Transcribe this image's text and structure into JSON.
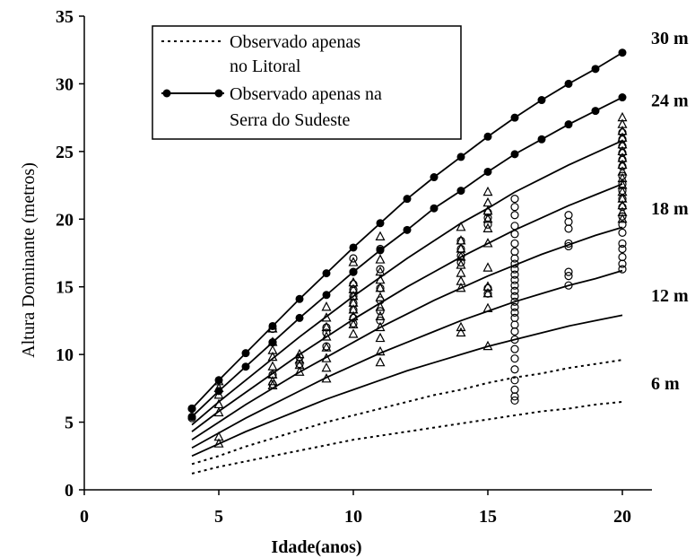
{
  "chart_data": {
    "type": "line",
    "xlabel": "Idade(anos)",
    "ylabel": "Altura Dominante (metros)",
    "xlim": [
      0,
      22
    ],
    "ylim": [
      0,
      35
    ],
    "xticks": [
      0,
      5,
      10,
      15,
      20
    ],
    "yticks": [
      0,
      5,
      10,
      15,
      20,
      25,
      30,
      35
    ],
    "legend": {
      "position": "top-left",
      "entries": [
        {
          "label_lines": [
            "Observado apenas",
            "no Litoral"
          ],
          "style": "dotted"
        },
        {
          "label_lines": [
            "Observado apenas na",
            "Serra do Sudeste"
          ],
          "style": "solid-circle-markers"
        }
      ]
    },
    "site_index_labels": [
      {
        "text": "30 m",
        "y": 33.4
      },
      {
        "text": "24 m",
        "y": 28.8
      },
      {
        "text": "18 m",
        "y": 20.8
      },
      {
        "text": "12 m",
        "y": 14.4
      },
      {
        "text": "6 m",
        "y": 7.9
      }
    ],
    "curves_x": [
      4,
      5,
      6,
      7,
      8,
      9,
      10,
      11,
      12,
      13,
      14,
      15,
      16,
      17,
      18,
      19,
      20
    ],
    "series": [
      {
        "style": "solid-markers",
        "values": [
          6.0,
          8.1,
          10.1,
          12.1,
          14.1,
          16.0,
          17.9,
          19.7,
          21.5,
          23.1,
          24.6,
          26.1,
          27.5,
          28.8,
          30.0,
          31.1,
          32.3
        ]
      },
      {
        "style": "solid-markers",
        "values": [
          5.4,
          7.3,
          9.1,
          10.9,
          12.7,
          14.4,
          16.1,
          17.7,
          19.2,
          20.8,
          22.1,
          23.5,
          24.8,
          25.9,
          27.0,
          28.0,
          29.0
        ]
      },
      {
        "style": "solid",
        "values": [
          4.8,
          6.5,
          8.1,
          9.7,
          11.3,
          12.8,
          14.3,
          15.7,
          17.1,
          18.4,
          19.7,
          20.8,
          22.0,
          23.0,
          24.0,
          24.9,
          25.8
        ]
      },
      {
        "style": "solid",
        "values": [
          4.3,
          5.8,
          7.2,
          8.6,
          10.0,
          11.3,
          12.6,
          13.8,
          15.0,
          16.1,
          17.2,
          18.2,
          19.2,
          20.1,
          21.0,
          21.8,
          22.6
        ]
      },
      {
        "style": "solid",
        "values": [
          3.7,
          5.0,
          6.3,
          7.5,
          8.7,
          9.8,
          10.9,
          12.0,
          13.0,
          14.0,
          14.9,
          15.8,
          16.6,
          17.4,
          18.1,
          18.8,
          19.4
        ]
      },
      {
        "style": "solid",
        "values": [
          3.1,
          4.2,
          5.3,
          6.3,
          7.3,
          8.3,
          9.2,
          10.1,
          10.9,
          11.7,
          12.5,
          13.2,
          13.9,
          14.5,
          15.1,
          15.6,
          16.2
        ]
      },
      {
        "style": "solid",
        "values": [
          2.5,
          3.4,
          4.3,
          5.1,
          5.9,
          6.7,
          7.4,
          8.1,
          8.8,
          9.4,
          10.0,
          10.6,
          11.1,
          11.6,
          12.1,
          12.5,
          12.9
        ]
      },
      {
        "style": "dotted",
        "values": [
          1.9,
          2.5,
          3.2,
          3.8,
          4.4,
          5.0,
          5.5,
          6.0,
          6.5,
          7.0,
          7.4,
          7.9,
          8.3,
          8.6,
          9.0,
          9.3,
          9.6
        ]
      },
      {
        "style": "dotted",
        "values": [
          1.2,
          1.7,
          2.1,
          2.5,
          2.9,
          3.3,
          3.7,
          4.0,
          4.3,
          4.6,
          4.9,
          5.2,
          5.5,
          5.8,
          6.0,
          6.3,
          6.5
        ]
      }
    ],
    "observed_triangles": [
      {
        "x": 5,
        "y": [
          8.0,
          7.5,
          7.0,
          6.3,
          5.7,
          3.9,
          3.4
        ]
      },
      {
        "x": 7,
        "y": [
          11.9,
          10.9,
          10.3,
          9.8,
          9.1,
          8.5,
          8.0,
          7.7
        ]
      },
      {
        "x": 8,
        "y": [
          10.0,
          9.6,
          9.2,
          8.7
        ]
      },
      {
        "x": 9,
        "y": [
          13.5,
          12.7,
          12.0,
          11.3,
          10.5,
          9.7,
          9.0,
          8.2
        ]
      },
      {
        "x": 10,
        "y": [
          16.8,
          15.3,
          14.8,
          14.3,
          13.8,
          13.3,
          12.8,
          12.2,
          11.5
        ]
      },
      {
        "x": 11,
        "y": [
          18.7,
          17.0,
          16.1,
          15.5,
          14.9,
          14.2,
          13.5,
          12.8,
          12.0,
          11.2,
          10.2,
          9.4
        ]
      },
      {
        "x": 14,
        "y": [
          19.4,
          18.4,
          17.8,
          17.2,
          16.6,
          16.0,
          15.4,
          14.9,
          12.0,
          11.6
        ]
      },
      {
        "x": 15,
        "y": [
          22.0,
          21.2,
          20.6,
          20.0,
          19.3,
          18.2,
          16.4,
          15.0,
          14.5,
          13.4,
          10.6
        ]
      },
      {
        "x": 20,
        "y": [
          27.5,
          27.0,
          26.5,
          26.0,
          25.5,
          25.0,
          24.5,
          24.0,
          23.5,
          23.0,
          22.5,
          22.0,
          21.5,
          21.0,
          20.5,
          20.0
        ]
      }
    ],
    "observed_circles": [
      {
        "x": 4,
        "y": [
          6.0,
          5.3
        ]
      },
      {
        "x": 7,
        "y": [
          11.9,
          10.9,
          8.5,
          7.8
        ]
      },
      {
        "x": 8,
        "y": [
          9.8,
          9.3
        ]
      },
      {
        "x": 9,
        "y": [
          12.0,
          11.6,
          10.6
        ]
      },
      {
        "x": 10,
        "y": [
          17.1,
          16.1,
          15.2,
          14.8,
          14.3,
          13.8,
          13.3,
          12.7,
          12.3
        ]
      },
      {
        "x": 11,
        "y": [
          17.8,
          16.3,
          14.9,
          14.0,
          13.2,
          12.5
        ]
      },
      {
        "x": 14,
        "y": [
          18.4,
          17.8,
          17.3,
          16.8
        ]
      },
      {
        "x": 15,
        "y": [
          20.5,
          20.1,
          19.6,
          14.9,
          14.5
        ]
      },
      {
        "x": 16,
        "y": [
          21.5,
          20.9,
          20.3,
          19.5,
          18.9,
          18.2,
          17.6,
          17.1,
          16.7,
          16.3,
          15.9,
          15.5,
          15.1,
          14.7,
          14.3,
          13.9,
          13.5,
          13.1,
          12.7,
          12.2,
          11.7,
          11.1,
          10.4,
          9.7,
          8.9,
          8.1,
          7.4,
          6.9,
          6.6
        ]
      },
      {
        "x": 18,
        "y": [
          20.3,
          19.8,
          19.3,
          18.2,
          18.0,
          16.1,
          15.8,
          15.1
        ]
      },
      {
        "x": 20,
        "y": [
          26.4,
          25.9,
          25.4,
          24.9,
          24.4,
          23.9,
          23.2,
          22.6,
          22.1,
          21.5,
          20.9,
          20.2,
          19.6,
          19.0,
          18.2,
          17.8,
          17.2,
          16.7,
          16.3
        ]
      }
    ]
  }
}
